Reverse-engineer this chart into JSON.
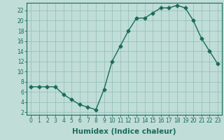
{
  "x": [
    0,
    1,
    2,
    3,
    4,
    5,
    6,
    7,
    8,
    9,
    10,
    11,
    12,
    13,
    14,
    15,
    16,
    17,
    18,
    19,
    20,
    21,
    22,
    23
  ],
  "y": [
    7,
    7,
    7,
    7,
    5.5,
    4.5,
    3.5,
    3,
    2.5,
    6.5,
    12,
    15,
    18,
    20.5,
    20.5,
    21.5,
    22.5,
    22.5,
    23,
    22.5,
    20,
    16.5,
    14,
    11.5
  ],
  "line_color": "#1a6b5a",
  "marker": "D",
  "marker_size": 2.5,
  "bg_color": "#c0ddd8",
  "grid_color": "#90bdb6",
  "xlabel": "Humidex (Indice chaleur)",
  "xlim": [
    -0.5,
    23.5
  ],
  "ylim": [
    1.5,
    23.5
  ],
  "yticks": [
    2,
    4,
    6,
    8,
    10,
    12,
    14,
    16,
    18,
    20,
    22
  ],
  "xticks": [
    0,
    1,
    2,
    3,
    4,
    5,
    6,
    7,
    8,
    9,
    10,
    11,
    12,
    13,
    14,
    15,
    16,
    17,
    18,
    19,
    20,
    21,
    22,
    23
  ],
  "tick_fontsize": 5.5,
  "label_fontsize": 7.5,
  "line_width": 1.0
}
